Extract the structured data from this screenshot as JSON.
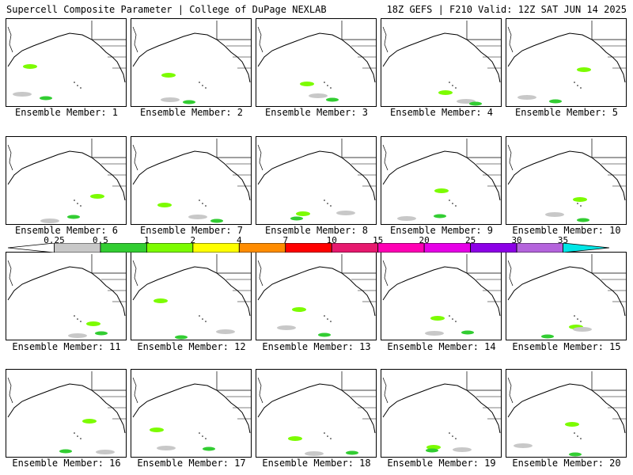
{
  "header": {
    "title": "Supercell Composite Parameter | College of DuPage NEXLAB",
    "run_info": "18Z GEFS | F210 Valid: 12Z SAT JUN 14 2025"
  },
  "members": [
    "Ensemble Member: 1",
    "Ensemble Member: 2",
    "Ensemble Member: 3",
    "Ensemble Member: 4",
    "Ensemble Member: 5",
    "Ensemble Member: 6",
    "Ensemble Member: 7",
    "Ensemble Member: 8",
    "Ensemble Member: 9",
    "Ensemble Member: 10",
    "Ensemble Member: 11",
    "Ensemble Member: 12",
    "Ensemble Member: 13",
    "Ensemble Member: 14",
    "Ensemble Member: 15",
    "Ensemble Member: 16",
    "Ensemble Member: 17",
    "Ensemble Member: 18",
    "Ensemble Member: 19",
    "Ensemble Member: 20"
  ],
  "colorbar": {
    "labels": [
      "0.25",
      "0.5",
      "1",
      "2",
      "4",
      "7",
      "10",
      "15",
      "20",
      "25",
      "30",
      "35"
    ],
    "colors": [
      "#c8c8c8",
      "#32cd32",
      "#7cfc00",
      "#ffff00",
      "#ff8c00",
      "#ff0000",
      "#e6196e",
      "#ff00b4",
      "#e600e6",
      "#8c00e6",
      "#b464dc",
      "#00e6e6"
    ]
  }
}
